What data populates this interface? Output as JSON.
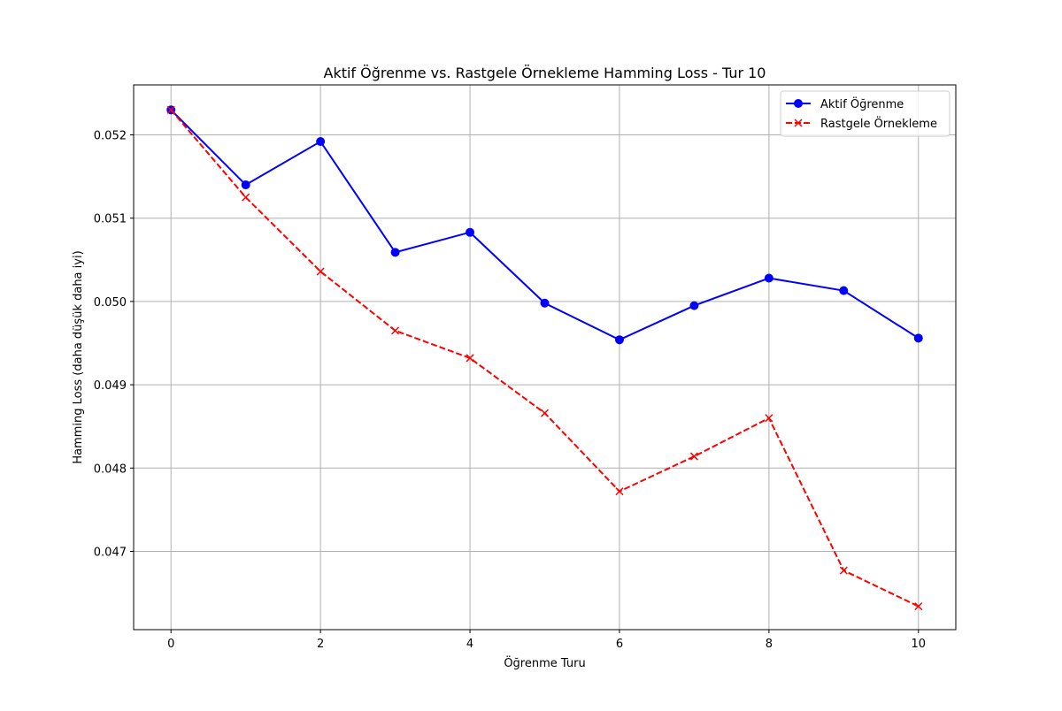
{
  "chart_data": {
    "type": "line",
    "title": "Aktif Öğrenme vs. Rastgele Örnekleme Hamming Loss - Tur 10",
    "xlabel": "Öğrenme Turu",
    "ylabel": "Hamming Loss (daha düşük daha iyi)",
    "x": [
      0,
      1,
      2,
      3,
      4,
      5,
      6,
      7,
      8,
      9,
      10
    ],
    "xlim": [
      -0.5,
      10.5
    ],
    "ylim": [
      0.04606,
      0.0526
    ],
    "xticks": [
      0,
      2,
      4,
      6,
      8,
      10
    ],
    "xtick_labels": [
      "0",
      "2",
      "4",
      "6",
      "8",
      "10"
    ],
    "yticks": [
      0.047,
      0.048,
      0.049,
      0.05,
      0.051,
      0.052
    ],
    "ytick_labels": [
      "0.047",
      "0.048",
      "0.049",
      "0.050",
      "0.051",
      "0.052"
    ],
    "grid": true,
    "legend_position": "top-right",
    "series": [
      {
        "name": "Aktif Öğrenme",
        "color": "#0000ff",
        "line_style": "solid",
        "marker": "circle",
        "values": [
          0.0523,
          0.0514,
          0.05192,
          0.05059,
          0.05083,
          0.04998,
          0.04954,
          0.04995,
          0.05028,
          0.05013,
          0.04956
        ]
      },
      {
        "name": "Rastgele Örnekleme",
        "color": "#ff0000",
        "line_style": "dashed",
        "marker": "x",
        "values": [
          0.0523,
          0.05125,
          0.05036,
          0.04965,
          0.04932,
          0.04866,
          0.04772,
          0.04814,
          0.0486,
          0.04677,
          0.04634
        ]
      }
    ]
  }
}
